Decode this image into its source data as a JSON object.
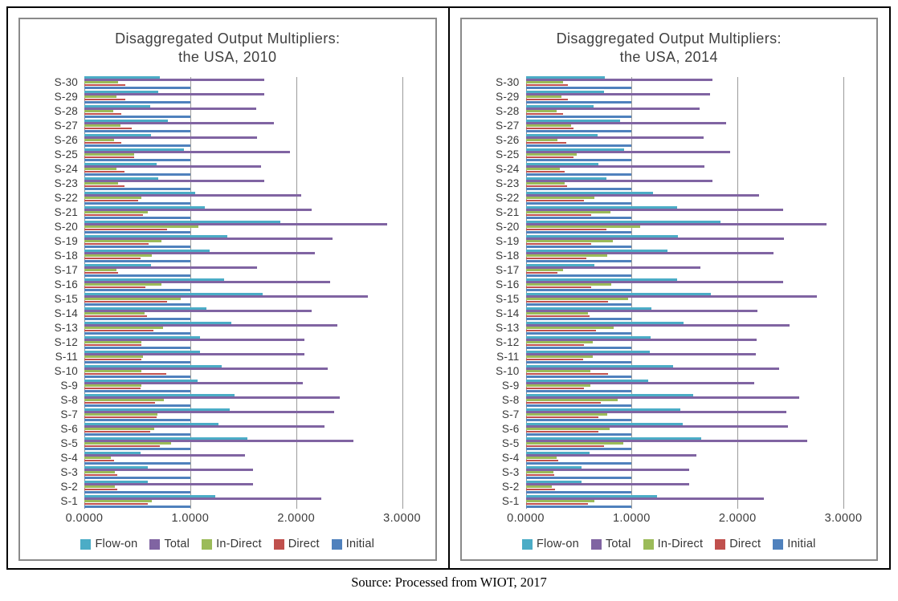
{
  "source_note": "Source: Processed from WIOT, 2017",
  "palette": {
    "flow_on": "#4BACC6",
    "total": "#8064A2",
    "in_direct": "#9BBB59",
    "direct": "#C0504D",
    "initial": "#4F81BD"
  },
  "chart_data": [
    {
      "type": "bar",
      "orientation": "horizontal",
      "title_line1": "Disaggregated Output Multipliers:",
      "title_line2": "the USA, 2010",
      "xlabel": "",
      "ylabel": "",
      "grid": true,
      "legend_position": "bottom",
      "xlim": [
        0,
        3.25
      ],
      "x_ticks": [
        {
          "label": "0.0000",
          "value": 0
        },
        {
          "label": "1.0000",
          "value": 1
        },
        {
          "label": "2.0000",
          "value": 2
        },
        {
          "label": "3.0000",
          "value": 3
        }
      ],
      "categories": [
        "S-1",
        "S-2",
        "S-3",
        "S-4",
        "S-5",
        "S-6",
        "S-7",
        "S-8",
        "S-9",
        "S-10",
        "S-11",
        "S-12",
        "S-13",
        "S-14",
        "S-15",
        "S-16",
        "S-17",
        "S-18",
        "S-19",
        "S-20",
        "S-21",
        "S-22",
        "S-23",
        "S-24",
        "S-25",
        "S-26",
        "S-27",
        "S-28",
        "S-29",
        "S-30"
      ],
      "category_order_note": "S-30 rendered at top, S-1 at bottom",
      "series": [
        {
          "name": "Flow-on",
          "color": "#4BACC6",
          "values": [
            1.24,
            0.6,
            0.6,
            0.53,
            1.54,
            1.27,
            1.37,
            1.42,
            1.07,
            1.3,
            1.09,
            1.09,
            1.39,
            1.15,
            1.68,
            1.32,
            0.63,
            1.18,
            1.35,
            1.85,
            1.14,
            1.05,
            0.7,
            0.68,
            0.94,
            0.63,
            0.79,
            0.62,
            0.7,
            0.71
          ]
        },
        {
          "name": "Total",
          "color": "#8064A2",
          "values": [
            2.24,
            1.59,
            1.59,
            1.52,
            2.54,
            2.27,
            2.36,
            2.41,
            2.06,
            2.3,
            2.08,
            2.08,
            2.39,
            2.15,
            2.68,
            2.32,
            1.63,
            2.18,
            2.34,
            2.86,
            2.15,
            2.05,
            1.7,
            1.67,
            1.94,
            1.63,
            1.79,
            1.62,
            1.7,
            1.7
          ]
        },
        {
          "name": "In-Direct",
          "color": "#9BBB59",
          "values": [
            0.64,
            0.29,
            0.29,
            0.25,
            0.82,
            0.66,
            0.69,
            0.75,
            0.54,
            0.54,
            0.55,
            0.54,
            0.74,
            0.57,
            0.91,
            0.73,
            0.3,
            0.64,
            0.73,
            1.08,
            0.6,
            0.54,
            0.32,
            0.3,
            0.47,
            0.28,
            0.34,
            0.27,
            0.3,
            0.32
          ]
        },
        {
          "name": "Direct",
          "color": "#C0504D",
          "values": [
            0.6,
            0.31,
            0.31,
            0.28,
            0.71,
            0.62,
            0.68,
            0.67,
            0.53,
            0.77,
            0.54,
            0.54,
            0.65,
            0.59,
            0.78,
            0.58,
            0.32,
            0.53,
            0.61,
            0.78,
            0.55,
            0.51,
            0.38,
            0.38,
            0.47,
            0.35,
            0.45,
            0.35,
            0.39,
            0.39
          ]
        },
        {
          "name": "Initial",
          "color": "#4F81BD",
          "values": [
            1.0,
            1.0,
            1.0,
            1.0,
            1.0,
            1.0,
            1.0,
            1.0,
            1.0,
            1.0,
            1.0,
            1.0,
            1.0,
            1.0,
            1.0,
            1.0,
            1.0,
            1.0,
            1.0,
            1.0,
            1.0,
            1.0,
            1.0,
            1.0,
            1.0,
            1.0,
            1.0,
            1.0,
            1.0,
            1.0
          ]
        }
      ]
    },
    {
      "type": "bar",
      "orientation": "horizontal",
      "title_line1": "Disaggregated Output Multipliers:",
      "title_line2": "the USA, 2014",
      "xlabel": "",
      "ylabel": "",
      "grid": true,
      "legend_position": "bottom",
      "xlim": [
        0,
        3.25
      ],
      "x_ticks": [
        {
          "label": "0.0000",
          "value": 0
        },
        {
          "label": "1.0000",
          "value": 1
        },
        {
          "label": "2.0000",
          "value": 2
        },
        {
          "label": "3.0000",
          "value": 3
        }
      ],
      "categories": [
        "S-1",
        "S-2",
        "S-3",
        "S-4",
        "S-5",
        "S-6",
        "S-7",
        "S-8",
        "S-9",
        "S-10",
        "S-11",
        "S-12",
        "S-13",
        "S-14",
        "S-15",
        "S-16",
        "S-17",
        "S-18",
        "S-19",
        "S-20",
        "S-21",
        "S-22",
        "S-23",
        "S-24",
        "S-25",
        "S-26",
        "S-27",
        "S-28",
        "S-29",
        "S-30"
      ],
      "category_order_note": "S-30 rendered at top, S-1 at bottom",
      "series": [
        {
          "name": "Flow-on",
          "color": "#4BACC6",
          "values": [
            1.24,
            0.53,
            0.53,
            0.6,
            1.66,
            1.48,
            1.46,
            1.58,
            1.16,
            1.39,
            1.17,
            1.18,
            1.49,
            1.19,
            1.75,
            1.43,
            0.65,
            1.34,
            1.44,
            1.84,
            1.43,
            1.2,
            0.76,
            0.69,
            0.93,
            0.68,
            0.89,
            0.64,
            0.74,
            0.75
          ]
        },
        {
          "name": "Total",
          "color": "#8064A2",
          "values": [
            2.25,
            1.54,
            1.54,
            1.61,
            2.66,
            2.48,
            2.46,
            2.58,
            2.16,
            2.39,
            2.17,
            2.18,
            2.49,
            2.19,
            2.75,
            2.43,
            1.65,
            2.34,
            2.44,
            2.84,
            2.43,
            2.2,
            1.76,
            1.69,
            1.93,
            1.68,
            1.89,
            1.64,
            1.74,
            1.76
          ]
        },
        {
          "name": "In-Direct",
          "color": "#9BBB59",
          "values": [
            0.65,
            0.25,
            0.26,
            0.29,
            0.92,
            0.79,
            0.77,
            0.87,
            0.61,
            0.61,
            0.63,
            0.63,
            0.83,
            0.59,
            0.97,
            0.81,
            0.35,
            0.77,
            0.82,
            1.08,
            0.8,
            0.65,
            0.37,
            0.32,
            0.48,
            0.3,
            0.43,
            0.29,
            0.34,
            0.35
          ]
        },
        {
          "name": "Direct",
          "color": "#C0504D",
          "values": [
            0.59,
            0.28,
            0.27,
            0.31,
            0.74,
            0.69,
            0.69,
            0.71,
            0.55,
            0.78,
            0.54,
            0.55,
            0.66,
            0.6,
            0.78,
            0.62,
            0.3,
            0.57,
            0.62,
            0.76,
            0.62,
            0.55,
            0.39,
            0.37,
            0.45,
            0.38,
            0.45,
            0.35,
            0.4,
            0.4
          ]
        },
        {
          "name": "Initial",
          "color": "#4F81BD",
          "values": [
            1.0,
            1.0,
            1.0,
            1.0,
            1.0,
            1.0,
            1.0,
            1.0,
            1.0,
            1.0,
            1.0,
            1.0,
            1.0,
            1.0,
            1.0,
            1.0,
            1.0,
            1.0,
            1.0,
            1.0,
            1.0,
            1.0,
            1.0,
            1.0,
            1.0,
            1.0,
            1.0,
            1.0,
            1.0,
            1.0
          ]
        }
      ]
    }
  ]
}
